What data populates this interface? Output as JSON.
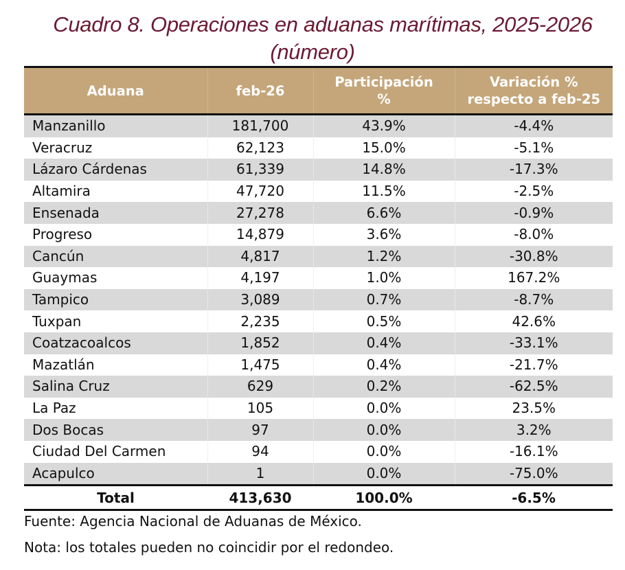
{
  "title": {
    "line1": "Cuadro 8. Operaciones en aduanas marítimas, 2025-2026",
    "line2": "(número)"
  },
  "colors": {
    "title": "#6B1A33",
    "header_bg": "#C4A67A",
    "header_text": "#FFFFFF",
    "row_shade": "#D9D9D9"
  },
  "table": {
    "headers": [
      "Aduana",
      "feb-26",
      "Participación %",
      "Variación % respecto a feb-25"
    ],
    "header_lines": {
      "c3a": "Participación",
      "c3b": "%",
      "c4a": "Variación %",
      "c4b": "respecto a feb-25"
    },
    "rows": [
      {
        "aduana": "Manzanillo",
        "feb26": "181,700",
        "part": "43.9%",
        "var": "-4.4%"
      },
      {
        "aduana": "Veracruz",
        "feb26": "62,123",
        "part": "15.0%",
        "var": "-5.1%"
      },
      {
        "aduana": "Lázaro Cárdenas",
        "feb26": "61,339",
        "part": "14.8%",
        "var": "-17.3%"
      },
      {
        "aduana": "Altamira",
        "feb26": "47,720",
        "part": "11.5%",
        "var": "-2.5%"
      },
      {
        "aduana": "Ensenada",
        "feb26": "27,278",
        "part": "6.6%",
        "var": "-0.9%"
      },
      {
        "aduana": "Progreso",
        "feb26": "14,879",
        "part": "3.6%",
        "var": "-8.0%"
      },
      {
        "aduana": "Cancún",
        "feb26": "4,817",
        "part": "1.2%",
        "var": "-30.8%"
      },
      {
        "aduana": "Guaymas",
        "feb26": "4,197",
        "part": "1.0%",
        "var": "167.2%"
      },
      {
        "aduana": "Tampico",
        "feb26": "3,089",
        "part": "0.7%",
        "var": "-8.7%"
      },
      {
        "aduana": "Tuxpan",
        "feb26": "2,235",
        "part": "0.5%",
        "var": "42.6%"
      },
      {
        "aduana": "Coatzacoalcos",
        "feb26": "1,852",
        "part": "0.4%",
        "var": "-33.1%"
      },
      {
        "aduana": "Mazatlán",
        "feb26": "1,475",
        "part": "0.4%",
        "var": "-21.7%"
      },
      {
        "aduana": "Salina Cruz",
        "feb26": "629",
        "part": "0.2%",
        "var": "-62.5%"
      },
      {
        "aduana": "La Paz",
        "feb26": "105",
        "part": "0.0%",
        "var": "23.5%"
      },
      {
        "aduana": "Dos Bocas",
        "feb26": "97",
        "part": "0.0%",
        "var": "3.2%"
      },
      {
        "aduana": "Ciudad Del Carmen",
        "feb26": "94",
        "part": "0.0%",
        "var": "-16.1%"
      },
      {
        "aduana": "Acapulco",
        "feb26": "1",
        "part": "0.0%",
        "var": "-75.0%"
      }
    ],
    "total": {
      "aduana": "Total",
      "feb26": "413,630",
      "part": "100.0%",
      "var": "-6.5%"
    }
  },
  "notes": {
    "source": "Fuente: Agencia Nacional de Aduanas de México.",
    "note": "Nota: los totales pueden no coincidir por el redondeo."
  }
}
